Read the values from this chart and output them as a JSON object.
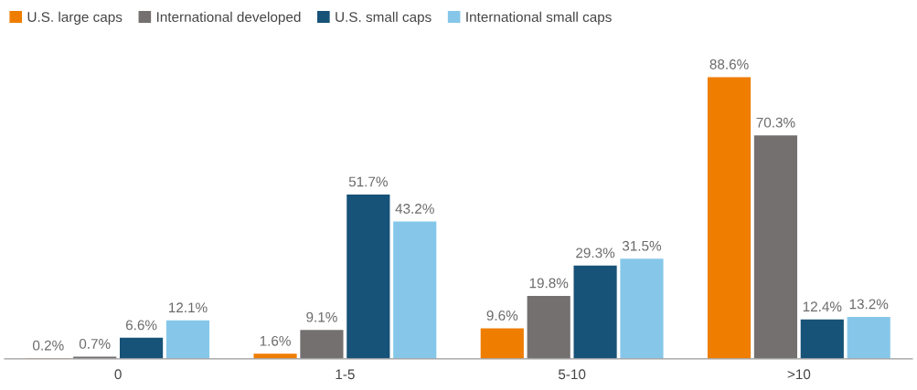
{
  "chart_data": {
    "type": "bar",
    "categories": [
      "0",
      "1-5",
      "5-10",
      ">10"
    ],
    "series": [
      {
        "name": "U.S. large caps",
        "color": "#ee7d00",
        "values": [
          0.2,
          1.6,
          9.6,
          88.6
        ],
        "value_labels": [
          "0.2%",
          "1.6%",
          "9.6%",
          "88.6%"
        ]
      },
      {
        "name": "International developed",
        "color": "#757070",
        "values": [
          0.7,
          9.1,
          19.8,
          70.3
        ],
        "value_labels": [
          "0.7%",
          "9.1%",
          "19.8%",
          "70.3%"
        ]
      },
      {
        "name": "U.S. small caps",
        "color": "#175278",
        "values": [
          6.6,
          51.7,
          29.3,
          12.4
        ],
        "value_labels": [
          "6.6%",
          "51.7%",
          "29.3%",
          "12.4%"
        ]
      },
      {
        "name": "International small caps",
        "color": "#86c7e9",
        "values": [
          12.1,
          43.2,
          31.5,
          13.2
        ],
        "value_labels": [
          "12.1%",
          "43.2%",
          "31.5%",
          "13.2%"
        ]
      }
    ],
    "legend": "top left",
    "grid": false
  }
}
